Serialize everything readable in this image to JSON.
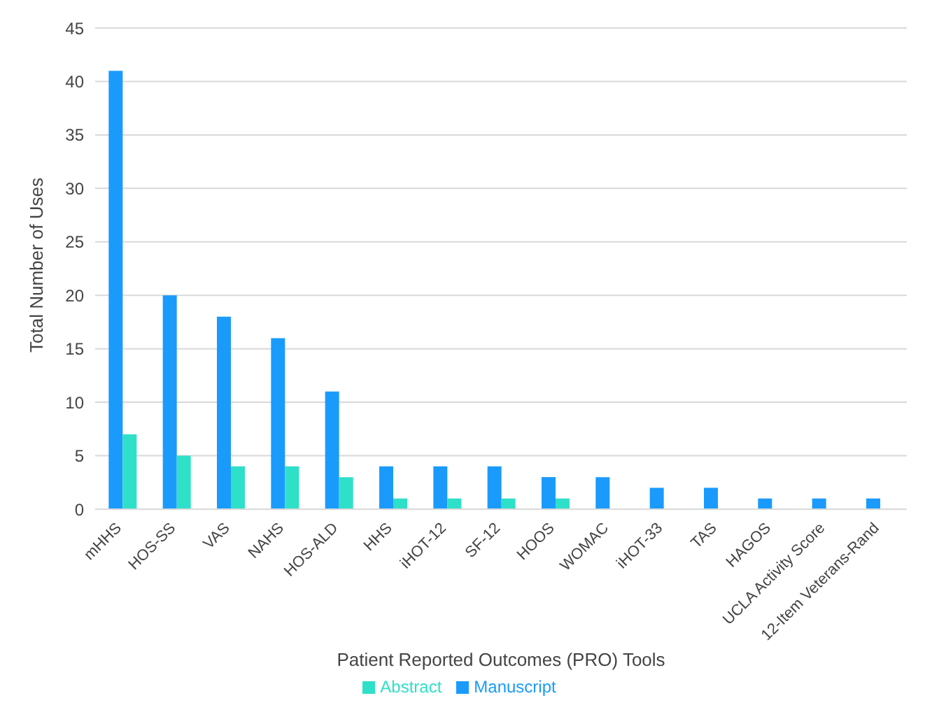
{
  "chart_data": {
    "type": "bar",
    "xlabel": "Patient Reported Outcomes (PRO) Tools",
    "ylabel": "Total Number of Uses",
    "categories": [
      "mHHS",
      "HOS-SS",
      "VAS",
      "NAHS",
      "HOS-ALD",
      "HHS",
      "iHOT-12",
      "SF-12",
      "HOOS",
      "WOMAC",
      "iHOT-33",
      "TAS",
      "HAGOS",
      "UCLA Activity Score",
      "12-Item Veterans-Rand"
    ],
    "series": [
      {
        "name": "Manuscript",
        "color": "#1a9bfc",
        "values": [
          41,
          20,
          18,
          16,
          11,
          4,
          4,
          4,
          3,
          3,
          2,
          2,
          1,
          1,
          1
        ]
      },
      {
        "name": "Abstract",
        "color": "#2fe0c8",
        "values": [
          7,
          5,
          4,
          4,
          3,
          1,
          1,
          1,
          1,
          0,
          0,
          0,
          0,
          0,
          0
        ]
      }
    ],
    "ylim": [
      0,
      45
    ],
    "yticks": [
      0,
      5,
      10,
      15,
      20,
      25,
      30,
      35,
      40,
      45
    ],
    "grid": "y",
    "legend": "bottom"
  }
}
